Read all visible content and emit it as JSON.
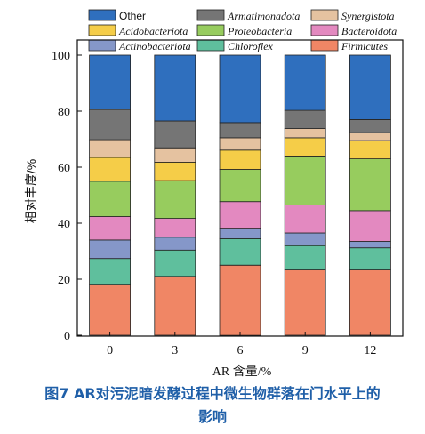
{
  "chart_data": {
    "type": "bar",
    "stacked": true,
    "categories": [
      "0",
      "3",
      "6",
      "9",
      "12"
    ],
    "xlabel": "AR 含量/%",
    "ylabel": "相对丰度/%",
    "ylim": [
      0,
      100
    ],
    "yticks": [
      0,
      20,
      40,
      60,
      80,
      100
    ],
    "legend_position": "top",
    "series": [
      {
        "name": "Firmicutes",
        "color": "#f08665",
        "values": [
          18.2,
          21.0,
          25.0,
          23.3,
          23.3
        ]
      },
      {
        "name": "Chloroflex",
        "color": "#5fbf9d",
        "values": [
          9.2,
          9.4,
          9.5,
          8.7,
          7.9
        ]
      },
      {
        "name": "Actinobacteriota",
        "color": "#8597c9",
        "values": [
          6.6,
          4.6,
          3.7,
          4.5,
          2.3
        ]
      },
      {
        "name": "Bacteroidota",
        "color": "#e389c0",
        "values": [
          8.4,
          6.7,
          9.5,
          10.0,
          11.0
        ]
      },
      {
        "name": "Proteobacteria",
        "color": "#97cc5e",
        "values": [
          12.6,
          13.5,
          11.5,
          17.5,
          18.5
        ]
      },
      {
        "name": "Acidobacteriota",
        "color": "#f5cd48",
        "values": [
          8.5,
          6.6,
          6.9,
          6.5,
          6.5
        ]
      },
      {
        "name": "Synergistota",
        "color": "#e5c2a0",
        "values": [
          6.3,
          5.1,
          4.4,
          3.3,
          2.8
        ]
      },
      {
        "name": "Armatimonadota",
        "color": "#757575",
        "values": [
          10.8,
          9.6,
          5.4,
          6.5,
          4.7
        ]
      },
      {
        "name": "Other",
        "color": "#2f6fbe",
        "values": [
          19.4,
          23.5,
          24.1,
          19.7,
          23.0
        ]
      }
    ],
    "legend_order": [
      "Other",
      "Armatimonadota",
      "Synergistota",
      "Acidobacteriota",
      "Proteobacteria",
      "Bacteroidota",
      "Actinobacteriota",
      "Chloroflex",
      "Firmicutes"
    ]
  },
  "caption": {
    "line1": "图7   AR对污泥暗发酵过程中微生物群落在门水平上的",
    "line2": "影响"
  }
}
